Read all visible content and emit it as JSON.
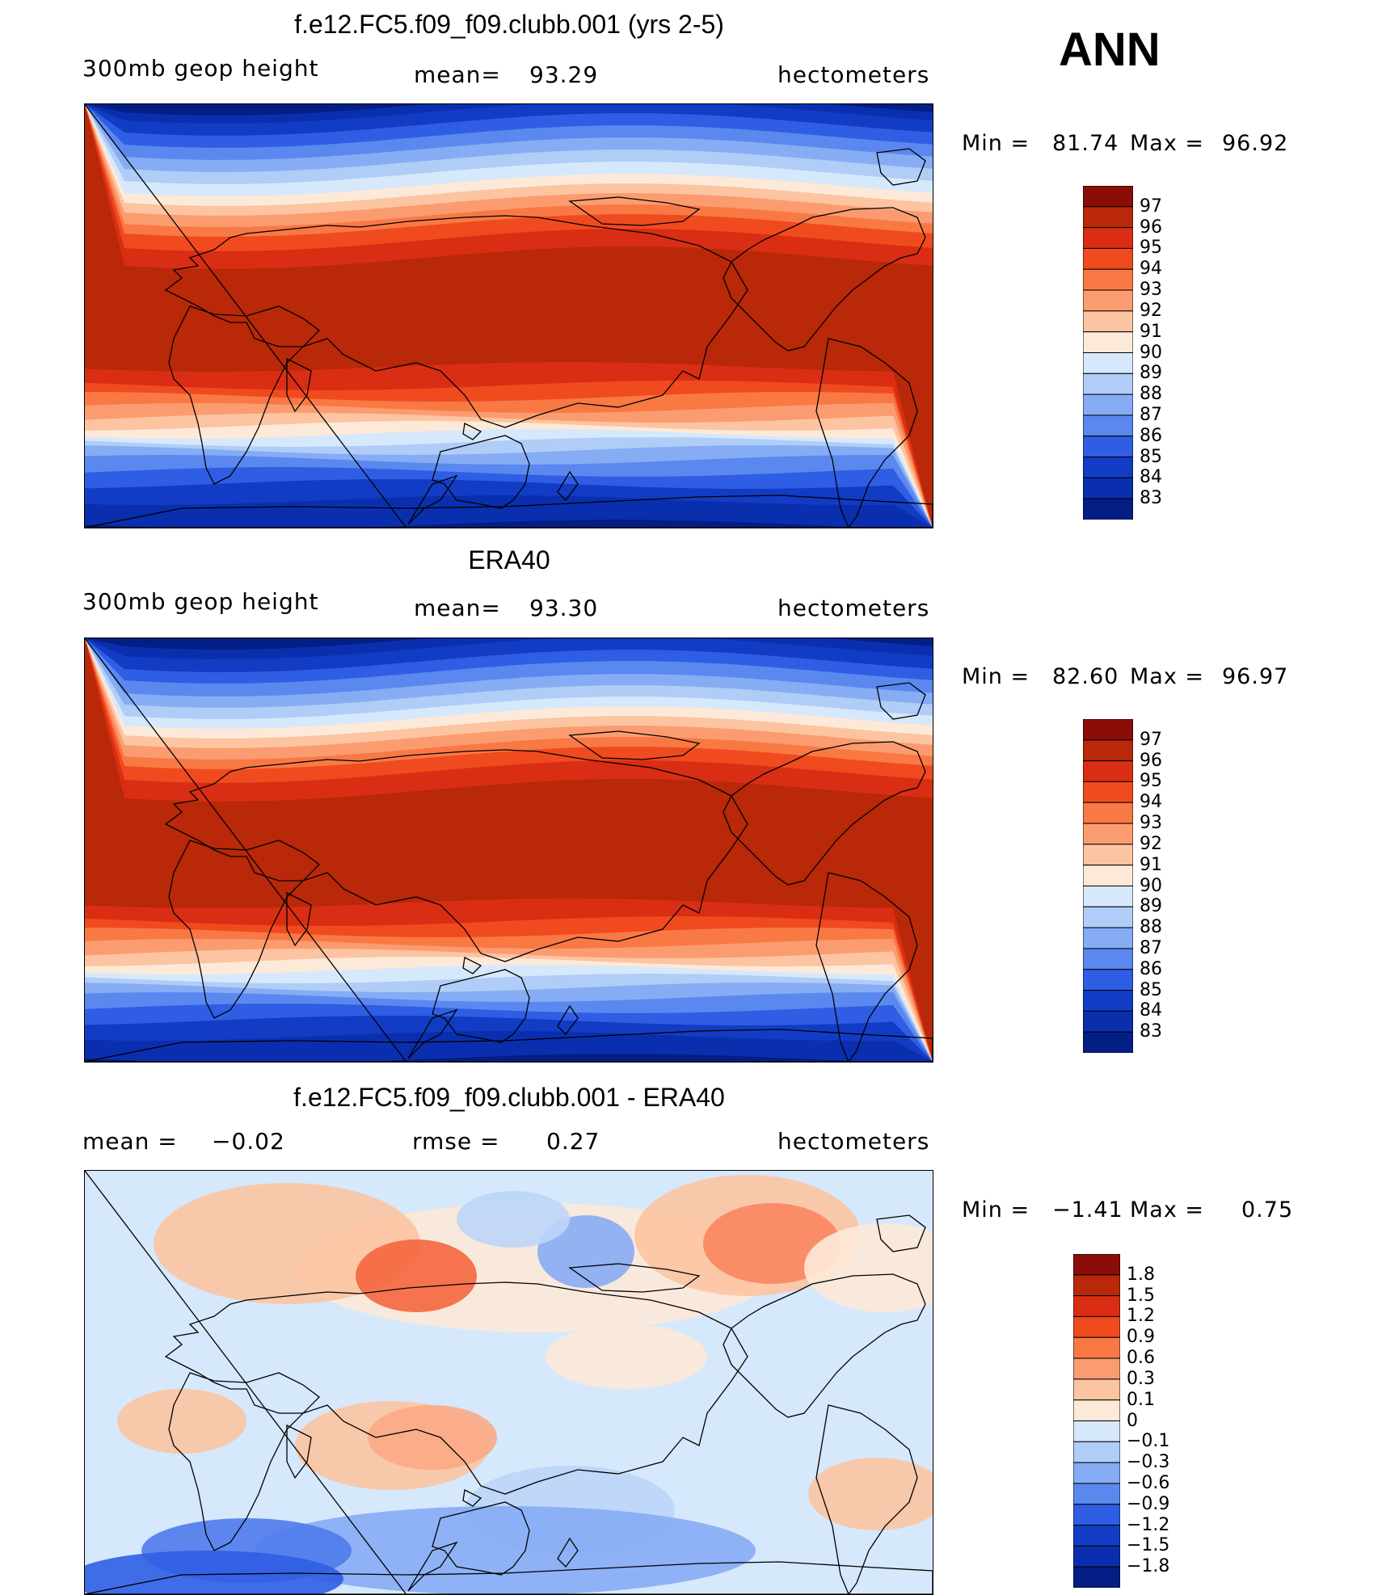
{
  "season_label": "ANN",
  "colors": {
    "warm": [
      "#ffffff",
      "#fde9d8",
      "#fcd0b0",
      "#fbaa85",
      "#f98660",
      "#f4663f",
      "#ec4420",
      "#d92e14",
      "#b82809",
      "#8b0d08"
    ],
    "cool": [
      "#d6e8fb",
      "#bcd5f8",
      "#a2c2f6",
      "#86acf4",
      "#6b93f1",
      "#4f7bec",
      "#2f5ee4",
      "#1845d2",
      "#0a2fae",
      "#031f86"
    ],
    "outline": "#000000"
  },
  "panels": [
    {
      "title": "f.e12.FC5.f09_f09.clubb.001 (yrs 2-5)",
      "left": {
        "label": "300mb  geop  height",
        "value": ""
      },
      "center": {
        "label": "mean=",
        "value": "93.29"
      },
      "right": "hectometers",
      "min_label": "Min  =",
      "min_value": "81.74",
      "max_label": "Max  =",
      "max_value": "96.92",
      "colorbar": [
        "97",
        "96",
        "95",
        "94",
        "93",
        "92",
        "91",
        "90",
        "89",
        "88",
        "87",
        "86",
        "85",
        "84",
        "83"
      ]
    },
    {
      "title": "ERA40",
      "left": {
        "label": "300mb  geop  height",
        "value": ""
      },
      "center": {
        "label": "mean=",
        "value": "93.30"
      },
      "right": "hectometers",
      "min_label": "Min  =",
      "min_value": "82.60",
      "max_label": "Max  =",
      "max_value": "96.97",
      "colorbar": [
        "97",
        "96",
        "95",
        "94",
        "93",
        "92",
        "91",
        "90",
        "89",
        "88",
        "87",
        "86",
        "85",
        "84",
        "83"
      ]
    },
    {
      "title": "f.e12.FC5.f09_f09.clubb.001 - ERA40",
      "left": {
        "label": "mean  =",
        "value": "−0.02"
      },
      "center": {
        "label": "rmse  =",
        "value": "0.27"
      },
      "right": "hectometers",
      "min_label": "Min  =",
      "min_value": "−1.41",
      "max_label": "Max  =",
      "max_value": "0.75",
      "colorbar": [
        "1.8",
        "1.5",
        "1.2",
        "0.9",
        "0.6",
        "0.3",
        "0.1",
        "0",
        "−0.1",
        "−0.3",
        "−0.6",
        "−0.9",
        "−1.2",
        "−1.5",
        "−1.8"
      ]
    }
  ],
  "colorbar_fills": [
    [
      "#8b0d08",
      "#b82809",
      "#d92e14",
      "#f04a1f",
      "#f97945",
      "#fb9c70",
      "#fcc4a1",
      "#fde9d8",
      "#d6e8fb",
      "#b0cdf7",
      "#86acf4",
      "#5a88ef",
      "#2f5ee4",
      "#123cc4",
      "#0a2fae",
      "#031f86"
    ],
    [
      "#8b0d08",
      "#b82809",
      "#d92e14",
      "#f04a1f",
      "#f97945",
      "#fb9c70",
      "#fcc4a1",
      "#fde9d8",
      "#d6e8fb",
      "#b0cdf7",
      "#86acf4",
      "#5a88ef",
      "#2f5ee4",
      "#123cc4",
      "#0a2fae",
      "#031f86"
    ],
    [
      "#8b0d08",
      "#b82809",
      "#d92e14",
      "#f04a1f",
      "#f97945",
      "#fb9c70",
      "#fcc4a1",
      "#fde9d8",
      "#d6e8fb",
      "#b0cdf7",
      "#86acf4",
      "#5a88ef",
      "#2f5ee4",
      "#123cc4",
      "#0a2fae",
      "#031f86"
    ]
  ]
}
